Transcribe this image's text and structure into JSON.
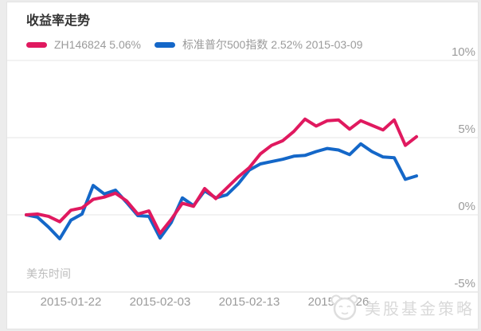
{
  "card": {
    "title": "收益率走势"
  },
  "legend": {
    "items": [
      {
        "series": "ZH146824",
        "label": "ZH146824 5.06%",
        "color": "#e0195f"
      },
      {
        "series": "标准普尔500指数",
        "label": "标准普尔500指数 2.52% 2015-03-09",
        "color": "#1467c8"
      }
    ]
  },
  "axis_note": "美东时间",
  "watermark": {
    "icon": "mascot-face-icon",
    "text": "美股基金策略",
    "color": "#d9d9d9"
  },
  "colors": {
    "zh_line": "#e0195f",
    "sp500_line": "#1467c8",
    "gridline": "#e6e6e6",
    "axis_bottom": "#d8d8d8",
    "tick_text": "#9b9b9b"
  },
  "chart_data": {
    "type": "line",
    "title": "收益率走势",
    "as_of_date": "2015-03-09",
    "y_unit": "%",
    "ylim": [
      -5,
      10
    ],
    "grid": "horizontal",
    "legend_position": "top-left",
    "x_axis_note": "美东时间",
    "x_dates": [
      "2015-01-15",
      "2015-01-16",
      "2015-01-20",
      "2015-01-21",
      "2015-01-22",
      "2015-01-23",
      "2015-01-26",
      "2015-01-27",
      "2015-01-28",
      "2015-01-29",
      "2015-01-30",
      "2015-02-02",
      "2015-02-03",
      "2015-02-04",
      "2015-02-05",
      "2015-02-06",
      "2015-02-09",
      "2015-02-10",
      "2015-02-11",
      "2015-02-12",
      "2015-02-13",
      "2015-02-17",
      "2015-02-18",
      "2015-02-19",
      "2015-02-20",
      "2015-02-23",
      "2015-02-24",
      "2015-02-25",
      "2015-02-26",
      "2015-02-27",
      "2015-03-02",
      "2015-03-03",
      "2015-03-04",
      "2015-03-05",
      "2015-03-06",
      "2015-03-09"
    ],
    "x_tick_labels": [
      "2015-01-22",
      "2015-02-03",
      "2015-02-13",
      "2015-02-26"
    ],
    "y_ticks": [
      {
        "label": "10%",
        "value": 10
      },
      {
        "label": "5%",
        "value": 5
      },
      {
        "label": "0%",
        "value": 0
      },
      {
        "label": "-5%",
        "value": -5
      }
    ],
    "series": [
      {
        "name": "ZH146824",
        "final_return_pct": 5.06,
        "color": "#e0195f",
        "values": [
          0,
          0.05,
          -0.1,
          -0.45,
          0.3,
          0.45,
          1.0,
          1.15,
          1.4,
          0.9,
          0.05,
          0.25,
          -1.2,
          -0.3,
          0.75,
          0.55,
          1.7,
          1.05,
          1.75,
          2.45,
          3.05,
          3.95,
          4.5,
          4.8,
          5.4,
          6.2,
          5.75,
          6.1,
          6.15,
          5.55,
          6.1,
          5.8,
          5.5,
          6.15,
          4.5,
          5.06
        ]
      },
      {
        "name": "标准普尔500指数",
        "final_return_pct": 2.52,
        "color": "#1467c8",
        "values": [
          0,
          -0.15,
          -0.8,
          -1.55,
          -0.35,
          0.05,
          1.9,
          1.35,
          1.6,
          0.8,
          -0.05,
          -0.1,
          -1.5,
          -0.5,
          1.1,
          0.6,
          1.55,
          1.1,
          1.3,
          2.0,
          2.9,
          3.3,
          3.45,
          3.6,
          3.8,
          3.85,
          4.1,
          4.3,
          4.2,
          3.9,
          4.6,
          4.1,
          3.75,
          3.7,
          2.3,
          2.52
        ]
      }
    ]
  }
}
